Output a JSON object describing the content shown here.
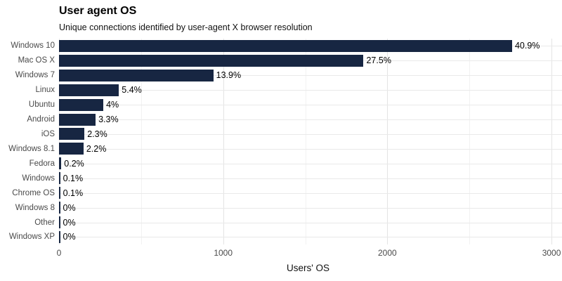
{
  "chart": {
    "title": "User agent OS",
    "subtitle": "Unique connections identified by user-agent X browser resolution",
    "x_axis_title": "Users' OS"
  },
  "chart_data": {
    "type": "bar",
    "orientation": "horizontal",
    "title": "User agent OS",
    "subtitle": "Unique connections identified by user-agent X browser resolution",
    "xlabel": "Users' OS",
    "ylabel": "",
    "categories": [
      "Windows 10",
      "Mac OS X",
      "Windows 7",
      "Linux",
      "Ubuntu",
      "Android",
      "iOS",
      "Windows 8.1",
      "Fedora",
      "Windows",
      "Chrome OS",
      "Windows 8",
      "Other",
      "Windows XP"
    ],
    "values": [
      2760,
      1855,
      940,
      365,
      270,
      223,
      155,
      149,
      14,
      7,
      7,
      2,
      2,
      1
    ],
    "value_labels": [
      "40.9%",
      "27.5%",
      "13.9%",
      "5.4%",
      "4%",
      "3.3%",
      "2.3%",
      "2.2%",
      "0.2%",
      "0.1%",
      "0.1%",
      "0%",
      "0%",
      "0%"
    ],
    "xlim": [
      0,
      3034
    ],
    "x_major_ticks": [
      0,
      1000,
      2000,
      3000
    ],
    "x_major_tick_labels": [
      "0",
      "1000",
      "2000",
      "3000"
    ],
    "x_minor_ticks": [
      500,
      1500,
      2500
    ],
    "grid": true,
    "legend": false,
    "colors": {
      "bar": "#172642",
      "major_grid": "#e4e4e4",
      "minor_grid": "#f2f2f2",
      "axis_text": "#4a4a4a",
      "label_text": "#000000",
      "background": "#ffffff"
    }
  }
}
